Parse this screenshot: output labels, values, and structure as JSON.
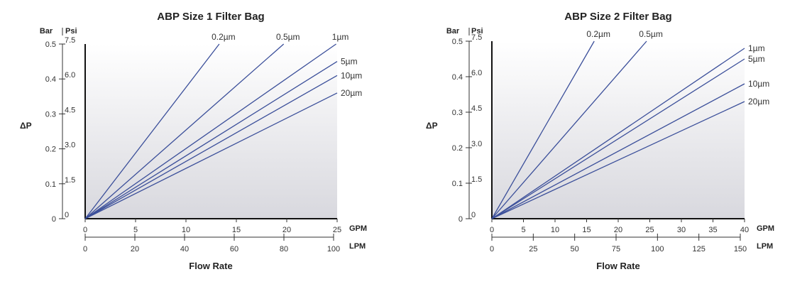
{
  "chart_data": [
    {
      "type": "line",
      "title": "ABP Size 1 Filter Bag",
      "y_label": "ΔP",
      "bar_unit": "Bar",
      "psi_unit": "Psi",
      "bar_ticks": [
        "0",
        "0.1",
        "0.2",
        "0.3",
        "0.4",
        "0.5"
      ],
      "psi_ticks": [
        "0",
        "1.5",
        "3.0",
        "4.5",
        "6.0",
        "7.5"
      ],
      "ylim": [
        0,
        0.5
      ],
      "gpm_unit": "GPM",
      "gpm_ticks": [
        0,
        5,
        10,
        15,
        20,
        25
      ],
      "lpm_unit": "LPM",
      "lpm_ticks": [
        0,
        20,
        40,
        60,
        80,
        100
      ],
      "xlim": [
        0,
        25
      ],
      "xlabel": "Flow Rate",
      "grid": false,
      "series": [
        {
          "name": "0.2µm",
          "x": [
            0,
            13.3
          ],
          "y": [
            0,
            0.5
          ]
        },
        {
          "name": "0.5µm",
          "x": [
            0,
            19.7
          ],
          "y": [
            0,
            0.5
          ]
        },
        {
          "name": "1µm",
          "x": [
            0,
            24.9
          ],
          "y": [
            0,
            0.5
          ]
        },
        {
          "name": "5µm",
          "x": [
            0,
            25
          ],
          "y": [
            0,
            0.45
          ]
        },
        {
          "name": "10µm",
          "x": [
            0,
            25
          ],
          "y": [
            0,
            0.41
          ]
        },
        {
          "name": "20µm",
          "x": [
            0,
            25
          ],
          "y": [
            0,
            0.36
          ]
        }
      ]
    },
    {
      "type": "line",
      "title": "ABP Size 2 Filter Bag",
      "y_label": "ΔP",
      "bar_unit": "Bar",
      "psi_unit": "Psi",
      "bar_ticks": [
        "0",
        "0.1",
        "0.2",
        "0.3",
        "0.4",
        "0.5"
      ],
      "psi_ticks": [
        "0",
        "1.5",
        "3.0",
        "4.5",
        "6.0",
        "7.5"
      ],
      "ylim": [
        0,
        0.5
      ],
      "gpm_unit": "GPM",
      "gpm_ticks": [
        0,
        5,
        10,
        15,
        20,
        25,
        30,
        35,
        40
      ],
      "lpm_unit": "LPM",
      "lpm_ticks": [
        0,
        25,
        50,
        75,
        100,
        125,
        150
      ],
      "xlim": [
        0,
        40
      ],
      "xlabel": "Flow Rate",
      "grid": false,
      "series": [
        {
          "name": "0.2µm",
          "x": [
            0,
            16.2
          ],
          "y": [
            0,
            0.5
          ]
        },
        {
          "name": "0.5µm",
          "x": [
            0,
            24.5
          ],
          "y": [
            0,
            0.5
          ]
        },
        {
          "name": "1µm",
          "x": [
            0,
            40
          ],
          "y": [
            0,
            0.48
          ]
        },
        {
          "name": "5µm",
          "x": [
            0,
            40
          ],
          "y": [
            0,
            0.45
          ]
        },
        {
          "name": "10µm",
          "x": [
            0,
            40
          ],
          "y": [
            0,
            0.38
          ]
        },
        {
          "name": "20µm",
          "x": [
            0,
            40
          ],
          "y": [
            0,
            0.33
          ]
        }
      ]
    }
  ],
  "style": {
    "line_color": "#3b4f9a",
    "fill_top": "#ffffff",
    "fill_bottom": "#d8d8de"
  }
}
